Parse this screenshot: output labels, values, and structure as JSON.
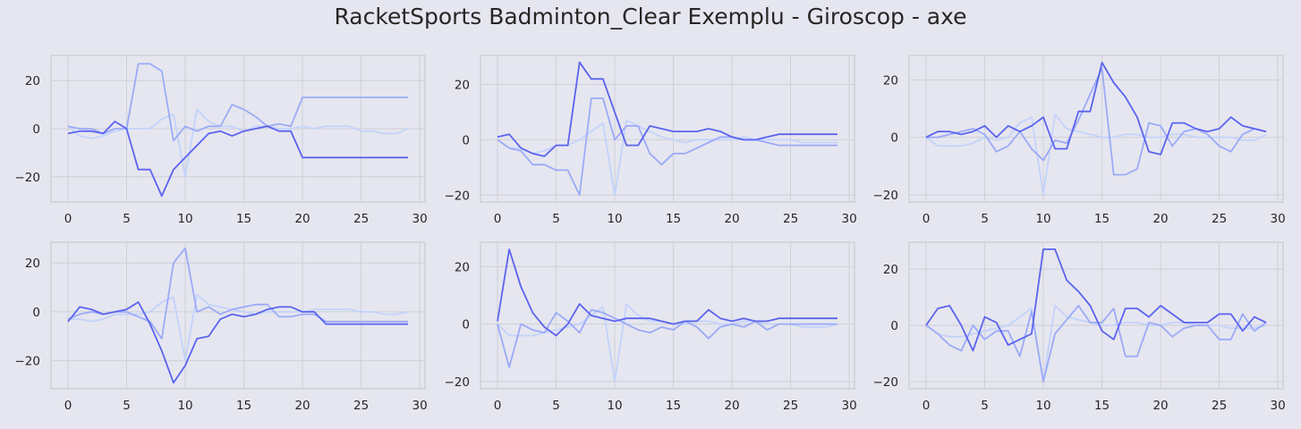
{
  "figure": {
    "title": "RacketSports Badminton_Clear Exemplu - Giroscop - axe"
  },
  "colors": {
    "background": "#e6e6f0",
    "plot_area": "#e6e6f0",
    "grid": "#cfcfd7",
    "series": [
      "#5b63ee",
      "#9baaf7",
      "#c3d3fb"
    ]
  },
  "chart_data": [
    {
      "type": "line",
      "grid": true,
      "xlim": [
        -1.45,
        30.45
      ],
      "ylim": [
        -30.5,
        30.5
      ],
      "xticks": [
        0,
        5,
        10,
        15,
        20,
        25,
        30
      ],
      "yticks": [
        -20,
        0,
        20
      ],
      "series": [
        {
          "values": [
            -2,
            -1,
            -1,
            -2,
            3,
            0,
            -17,
            -17,
            -28,
            -17,
            -12,
            -7,
            -2,
            -1,
            -3,
            -1,
            0,
            1,
            -1,
            -1,
            -12,
            -12,
            -12,
            -12,
            -12,
            -12,
            -12,
            -12,
            -12,
            -12
          ]
        },
        {
          "values": [
            1,
            0,
            0,
            -2,
            0,
            0,
            27,
            27,
            24,
            -5,
            1,
            -1,
            1,
            1,
            10,
            8,
            5,
            1,
            2,
            1,
            13,
            13,
            13,
            13,
            13,
            13,
            13,
            13,
            13,
            13
          ]
        },
        {
          "values": [
            1,
            -3,
            -4,
            -3,
            -1,
            0,
            0,
            0,
            4,
            6,
            -20,
            8,
            3,
            1,
            1,
            -1,
            1,
            1,
            0,
            0,
            1,
            0,
            1,
            1,
            1,
            -1,
            -1,
            -2,
            -2,
            0
          ]
        }
      ]
    },
    {
      "type": "line",
      "grid": true,
      "xlim": [
        -1.45,
        30.45
      ],
      "ylim": [
        -22.5,
        30.5
      ],
      "xticks": [
        0,
        5,
        10,
        15,
        20,
        25,
        30
      ],
      "yticks": [
        -20,
        0,
        20
      ],
      "series": [
        {
          "values": [
            1,
            2,
            -3,
            -5,
            -6,
            -2,
            -2,
            28,
            22,
            22,
            10,
            -2,
            -2,
            5,
            4,
            3,
            3,
            3,
            4,
            3,
            1,
            0,
            0,
            1,
            2,
            2,
            2,
            2,
            2,
            2
          ]
        },
        {
          "values": [
            0,
            -3,
            -4,
            -9,
            -9,
            -11,
            -11,
            -20,
            15,
            15,
            0,
            5,
            5,
            -5,
            -9,
            -5,
            -5,
            -3,
            -1,
            1,
            1,
            0,
            0,
            -1,
            -2,
            -2,
            -2,
            -2,
            -2,
            -2
          ]
        },
        {
          "values": [
            0,
            -3,
            -3,
            -5,
            -4,
            -2,
            -2,
            0,
            3,
            6,
            -20,
            7,
            5,
            3,
            1,
            0,
            -1,
            0,
            0,
            0,
            0,
            1,
            0,
            0,
            0,
            0,
            -1,
            -1,
            -1,
            -1
          ]
        }
      ]
    },
    {
      "type": "line",
      "grid": true,
      "xlim": [
        -1.45,
        30.45
      ],
      "ylim": [
        -22.5,
        28.5
      ],
      "xticks": [
        0,
        5,
        10,
        15,
        20,
        25,
        30
      ],
      "yticks": [
        -20,
        0,
        20
      ],
      "series": [
        {
          "values": [
            0,
            2,
            2,
            1,
            2,
            4,
            0,
            4,
            2,
            4,
            7,
            -4,
            -4,
            9,
            9,
            26,
            19,
            14,
            7,
            -5,
            -6,
            5,
            5,
            3,
            2,
            3,
            7,
            4,
            3,
            2
          ]
        },
        {
          "values": [
            0,
            0,
            1,
            2,
            3,
            1,
            -5,
            -3,
            2,
            -4,
            -8,
            -1,
            -2,
            6,
            15,
            24,
            -13,
            -13,
            -11,
            5,
            4,
            -3,
            2,
            3,
            1,
            -3,
            -5,
            1,
            3,
            2
          ]
        },
        {
          "values": [
            0,
            -3,
            -3,
            -3,
            -2,
            0,
            -1,
            0,
            5,
            7,
            -20,
            8,
            3,
            2,
            1,
            0,
            0,
            1,
            1,
            0,
            0,
            1,
            1,
            0,
            0,
            0,
            0,
            -1,
            -1,
            1
          ]
        }
      ]
    },
    {
      "type": "line",
      "grid": true,
      "xlim": [
        -1.45,
        30.45
      ],
      "ylim": [
        -31.5,
        28.5
      ],
      "xticks": [
        0,
        5,
        10,
        15,
        20,
        25,
        30
      ],
      "yticks": [
        -20,
        0,
        20
      ],
      "series": [
        {
          "values": [
            -4,
            2,
            1,
            -1,
            0,
            1,
            4,
            -5,
            -16,
            -29,
            -22,
            -11,
            -10,
            -3,
            -1,
            -2,
            -1,
            1,
            2,
            2,
            0,
            0,
            -5,
            -5,
            -5,
            -5,
            -5,
            -5,
            -5,
            -5
          ]
        },
        {
          "values": [
            -3,
            -1,
            0,
            -1,
            0,
            0,
            -2,
            -4,
            -11,
            20,
            26,
            0,
            2,
            -1,
            1,
            2,
            3,
            3,
            -2,
            -2,
            -1,
            -1,
            -4,
            -4,
            -4,
            -4,
            -4,
            -4,
            -4,
            -4
          ]
        },
        {
          "values": [
            -3,
            -3,
            -4,
            -3,
            -1,
            -1,
            -1,
            0,
            4,
            6,
            -20,
            7,
            3,
            2,
            1,
            0,
            -1,
            0,
            0,
            0,
            0,
            1,
            1,
            1,
            1,
            0,
            0,
            -1,
            -1,
            0
          ]
        }
      ]
    },
    {
      "type": "line",
      "grid": true,
      "xlim": [
        -1.45,
        30.45
      ],
      "ylim": [
        -22.5,
        28.5
      ],
      "xticks": [
        0,
        5,
        10,
        15,
        20,
        25,
        30
      ],
      "yticks": [
        -20,
        0,
        20
      ],
      "series": [
        {
          "values": [
            1,
            26,
            13,
            4,
            -1,
            -4,
            0,
            7,
            3,
            2,
            1,
            2,
            2,
            2,
            1,
            0,
            1,
            1,
            5,
            2,
            1,
            2,
            1,
            1,
            2,
            2,
            2,
            2,
            2,
            2
          ]
        },
        {
          "values": [
            0,
            -15,
            0,
            -2,
            -3,
            4,
            1,
            -3,
            5,
            4,
            2,
            0,
            -2,
            -3,
            -1,
            -2,
            1,
            -1,
            -5,
            -1,
            0,
            -1,
            1,
            -2,
            0,
            0,
            0,
            0,
            0,
            0
          ]
        },
        {
          "values": [
            0,
            -4,
            -4,
            -4,
            -3,
            -2,
            -1,
            0,
            3,
            6,
            -20,
            7,
            3,
            1,
            1,
            0,
            0,
            1,
            1,
            0,
            0,
            1,
            1,
            0,
            0,
            0,
            -1,
            -1,
            -1,
            0
          ]
        }
      ]
    },
    {
      "type": "line",
      "grid": true,
      "xlim": [
        -1.45,
        30.45
      ],
      "ylim": [
        -22.5,
        29.5
      ],
      "xticks": [
        0,
        5,
        10,
        15,
        20,
        25,
        30
      ],
      "yticks": [
        -20,
        0,
        20
      ],
      "series": [
        {
          "values": [
            0,
            6,
            7,
            0,
            -9,
            3,
            1,
            -7,
            -5,
            -3,
            27,
            27,
            16,
            12,
            7,
            -2,
            -5,
            6,
            6,
            3,
            7,
            4,
            1,
            1,
            1,
            4,
            4,
            -2,
            3,
            1
          ]
        },
        {
          "values": [
            0,
            -3,
            -7,
            -9,
            0,
            -5,
            -2,
            -2,
            -11,
            5,
            -20,
            -3,
            2,
            7,
            1,
            1,
            6,
            -11,
            -11,
            1,
            0,
            -4,
            -1,
            0,
            0,
            -5,
            -5,
            4,
            -2,
            1
          ]
        },
        {
          "values": [
            0,
            -3,
            -4,
            -4,
            -3,
            -2,
            -1,
            0,
            3,
            6,
            -20,
            7,
            3,
            2,
            1,
            0,
            0,
            1,
            1,
            0,
            0,
            1,
            1,
            0,
            0,
            0,
            -1,
            -1,
            -1,
            0
          ]
        }
      ]
    }
  ]
}
